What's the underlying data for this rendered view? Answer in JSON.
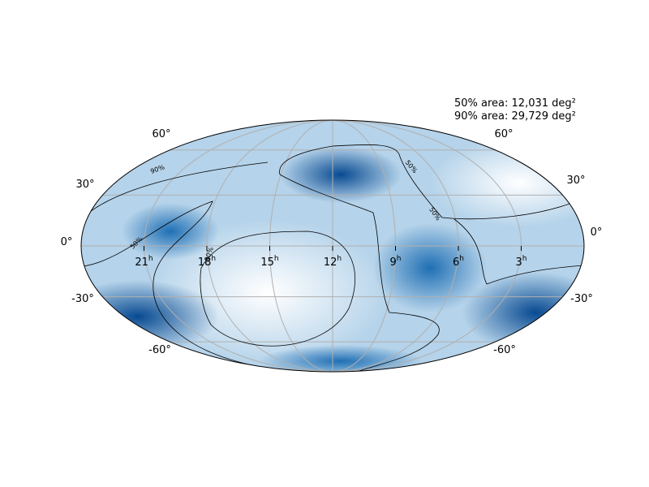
{
  "annotations": {
    "area_50": "50% area: 12,031 deg²",
    "area_90": "90% area: 29,729 deg²"
  },
  "lat_labels": [
    "60°",
    "30°",
    "0°",
    "-30°",
    "-60°"
  ],
  "ra_labels": [
    {
      "text": "21",
      "sup": "h"
    },
    {
      "text": "18",
      "sup": "h"
    },
    {
      "text": "15",
      "sup": "h"
    },
    {
      "text": "12",
      "sup": "h"
    },
    {
      "text": "9",
      "sup": "h"
    },
    {
      "text": "6",
      "sup": "h"
    },
    {
      "text": "3",
      "sup": "h"
    }
  ],
  "contour_labels": [
    "90%",
    "50%",
    "90%",
    "50%",
    "50%"
  ]
}
